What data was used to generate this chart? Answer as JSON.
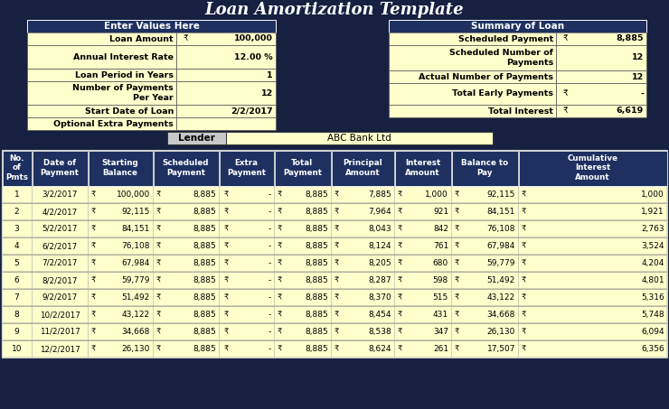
{
  "title": "Loan Amortization Template",
  "bg_color": "#162040",
  "yellow_bg": "#ffffcc",
  "dark_header_bg": "#1e3060",
  "table_header_bg": "#1e3060",
  "table_row_bg": "#ffffcc",
  "lender_label_bg": "#2a3a5c",
  "rupee": "₹",
  "input_section_title": "Enter Values Here",
  "summary_section_title": "Summary of Loan",
  "table_headers": [
    "No.\nof\nPmts",
    "Date of\nPayment",
    "Starting\nBalance",
    "Scheduled\nPayment",
    "Extra\nPayment",
    "Total\nPayment",
    "Principal\nAmount",
    "Interest\nAmount",
    "Balance to\nPay",
    "Cumulative\nInterest\nAmount"
  ],
  "table_data": [
    [
      1,
      "3/2/2017",
      "100,000",
      "8,885",
      "-",
      "8,885",
      "7,885",
      "1,000",
      "92,115",
      "1,000"
    ],
    [
      2,
      "4/2/2017",
      "92,115",
      "8,885",
      "-",
      "8,885",
      "7,964",
      "921",
      "84,151",
      "1,921"
    ],
    [
      3,
      "5/2/2017",
      "84,151",
      "8,885",
      "-",
      "8,885",
      "8,043",
      "842",
      "76,108",
      "2,763"
    ],
    [
      4,
      "6/2/2017",
      "76,108",
      "8,885",
      "-",
      "8,885",
      "8,124",
      "761",
      "67,984",
      "3,524"
    ],
    [
      5,
      "7/2/2017",
      "67,984",
      "8,885",
      "-",
      "8,885",
      "8,205",
      "680",
      "59,779",
      "4,204"
    ],
    [
      6,
      "8/2/2017",
      "59,779",
      "8,885",
      "-",
      "8,885",
      "8,287",
      "598",
      "51,492",
      "4,801"
    ],
    [
      7,
      "9/2/2017",
      "51,492",
      "8,885",
      "-",
      "8,885",
      "8,370",
      "515",
      "43,122",
      "5,316"
    ],
    [
      8,
      "10/2/2017",
      "43,122",
      "8,885",
      "-",
      "8,885",
      "8,454",
      "431",
      "34,668",
      "5,748"
    ],
    [
      9,
      "11/2/2017",
      "34,668",
      "8,885",
      "-",
      "8,885",
      "8,538",
      "347",
      "26,130",
      "6,094"
    ],
    [
      10,
      "12/2/2017",
      "26,130",
      "8,885",
      "-",
      "8,885",
      "8,624",
      "261",
      "17,507",
      "6,356"
    ]
  ]
}
